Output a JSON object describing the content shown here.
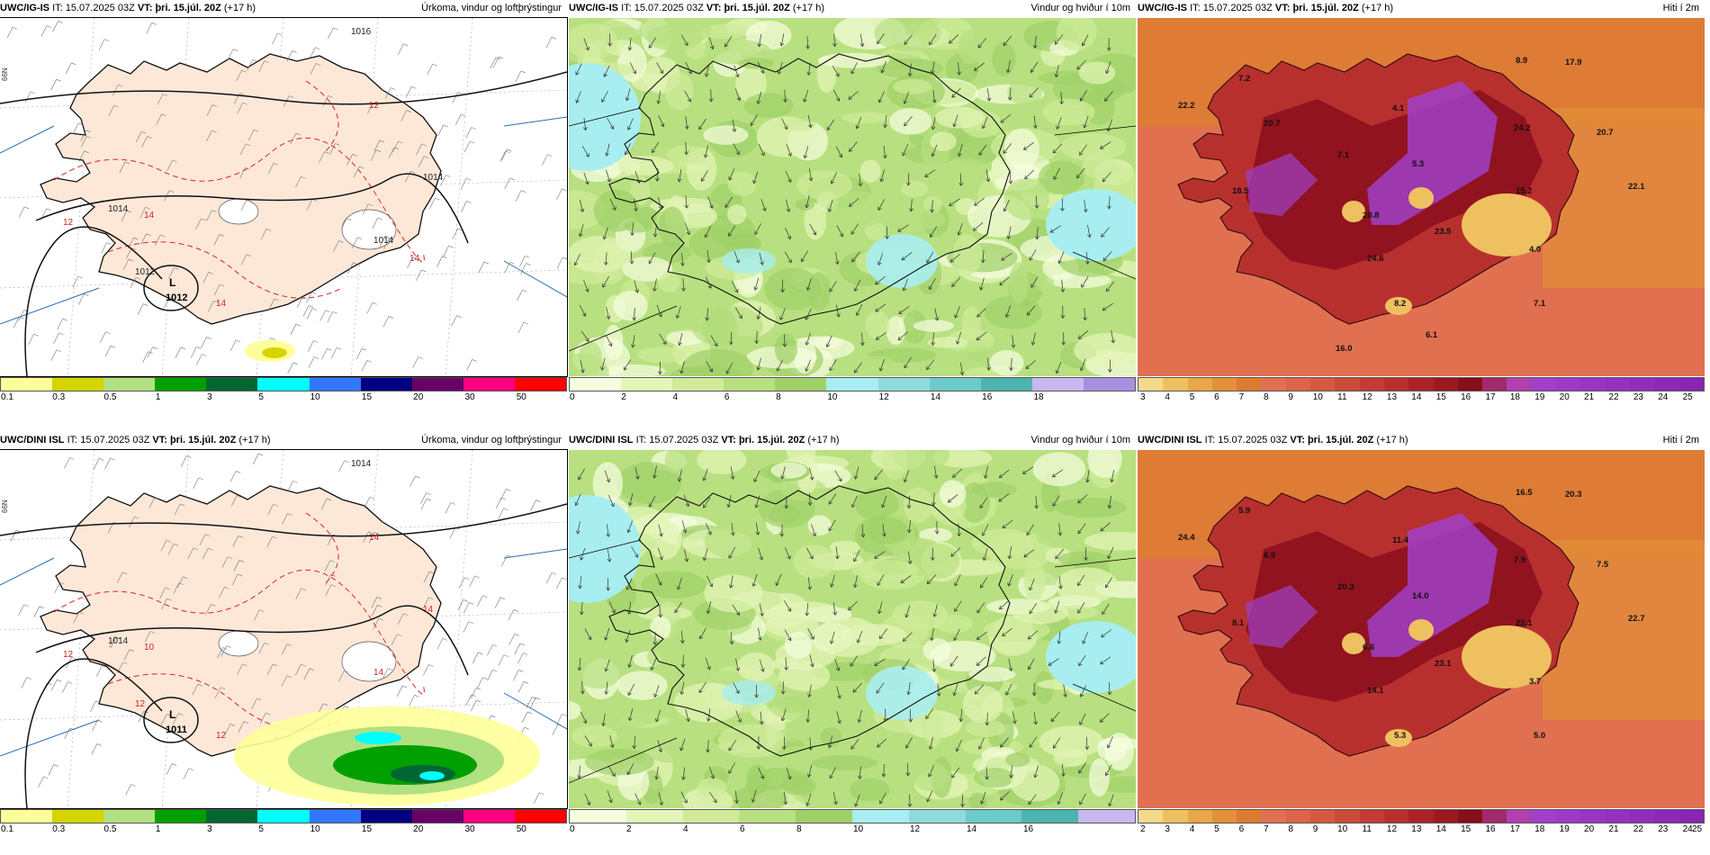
{
  "rows": [
    {
      "model": "UWC/IG-IS",
      "it_label": "IT:",
      "it_value": "15.07.2025 03Z",
      "vt_label": "VT:",
      "vt_value": "þri. 15.júl. 20Z",
      "lead": "(+17 h)"
    },
    {
      "model": "UWC/DINI ISL",
      "it_label": "IT:",
      "it_value": "15.07.2025 03Z",
      "vt_label": "VT:",
      "vt_value": "þri. 15.júl. 20Z",
      "lead": "(+17 h)"
    }
  ],
  "panels": {
    "precip": {
      "title": "Úrkoma, vindur og loftþrýstingur",
      "colors": [
        "#ffff99",
        "#d4d400",
        "#b0e080",
        "#00a000",
        "#006633",
        "#00ffff",
        "#3377ff",
        "#000080",
        "#660066",
        "#ff0080",
        "#ff0000"
      ],
      "ticks": [
        "0.1",
        "0.3",
        "0.5",
        "1",
        "3",
        "5",
        "10",
        "15",
        "20",
        "30",
        "50"
      ]
    },
    "wind": {
      "title": "Vindur og hviður í 10m",
      "colors_top": [
        "#f7fde0",
        "#e4f5b8",
        "#cfeb99",
        "#b8e080",
        "#a0d068",
        "#a8eef0",
        "#8edcda",
        "#6ccaca",
        "#4db4b0",
        "#c8b8f0",
        "#a890e0"
      ],
      "ticks_top": [
        "0",
        "2",
        "4",
        "6",
        "8",
        "10",
        "12",
        "14",
        "16",
        "18"
      ],
      "colors_bottom": [
        "#f7fde0",
        "#e4f5b8",
        "#cfeb99",
        "#b8e080",
        "#a0d068",
        "#a8eef0",
        "#8edcda",
        "#6ccaca",
        "#4db4b0",
        "#c8b8f0"
      ],
      "ticks_bottom": [
        "0",
        "2",
        "4",
        "6",
        "8",
        "10",
        "12",
        "14",
        "16"
      ]
    },
    "temp": {
      "title": "Hiti í 2m",
      "colors": [
        "#f5d98a",
        "#efc060",
        "#e9a848",
        "#e39038",
        "#dd7c30",
        "#e07050",
        "#dc6448",
        "#d55840",
        "#cc4c3a",
        "#c43a34",
        "#b8302e",
        "#aa2228",
        "#9a1a22",
        "#880e1c",
        "#a02a6a",
        "#b040b0",
        "#a040c8",
        "#9e38c8",
        "#9a34c4",
        "#9630c0",
        "#922cbc",
        "#8e28b8",
        "#8a24b4"
      ],
      "ticks_top": [
        "3",
        "4",
        "5",
        "6",
        "7",
        "8",
        "9",
        "10",
        "11",
        "12",
        "13",
        "14",
        "15",
        "16",
        "17",
        "18",
        "19",
        "20",
        "21",
        "22",
        "23",
        "24",
        "25"
      ],
      "ticks_bottom": [
        "2",
        "3",
        "4",
        "5",
        "6",
        "7",
        "8",
        "9",
        "10",
        "11",
        "12",
        "13",
        "14",
        "15",
        "16",
        "17",
        "18",
        "19",
        "20",
        "21",
        "22",
        "23",
        "24",
        "25"
      ],
      "maxima_top": [
        "8.9",
        "17.9",
        "7.2",
        "4.1",
        "22.2",
        "20.7",
        "24.2",
        "20.7",
        "7.1",
        "5.3",
        "18.5",
        "22.1",
        "15.2",
        "20.8",
        "23.5",
        "24.6",
        "4.0",
        "8.2",
        "7.1",
        "6.1",
        "16.0"
      ],
      "maxima_bottom": [
        "16.5",
        "20.3",
        "5.9",
        "11.4",
        "24.4",
        "6.9",
        "7.9",
        "7.5",
        "20.3",
        "14.0",
        "8.1",
        "22.7",
        "22.1",
        "6.6",
        "23.1",
        "14.1",
        "3.7",
        "5.3",
        "5.0"
      ]
    },
    "pressure_labels_top": [
      "1016",
      "1014",
      "1014",
      "1014",
      "1012",
      "14",
      "14",
      "12",
      "12",
      "14"
    ],
    "pressure_low_top": "L",
    "pressure_low_top_value": "1012",
    "pressure_labels_bottom": [
      "1014",
      "1014",
      "14",
      "14",
      "12",
      "10",
      "12",
      "14",
      "12"
    ],
    "pressure_low_bottom": "L",
    "pressure_low_bottom_value": "1011",
    "axis_labels": [
      "66N",
      "66N"
    ]
  }
}
